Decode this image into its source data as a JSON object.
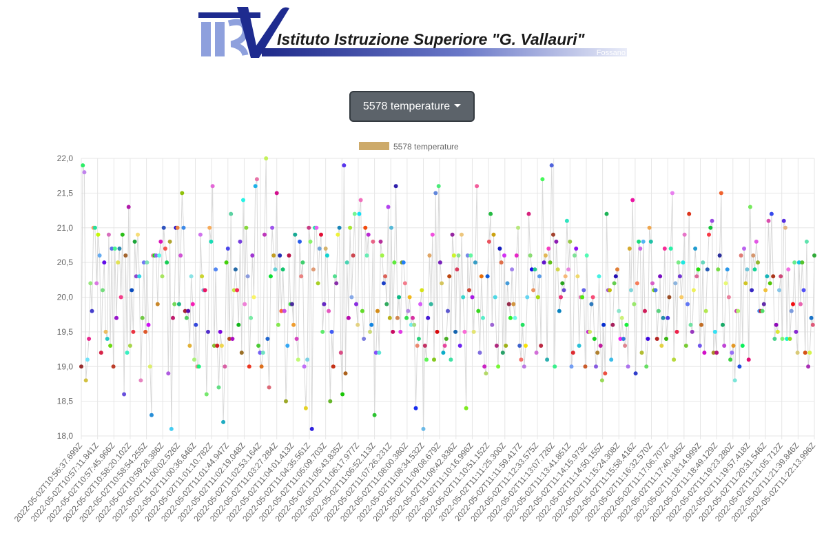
{
  "header": {
    "logo_monogram": "IIS",
    "logo_title": "Istituto Istruzione Superiore \"G. Vallauri\"",
    "logo_subtitle": "Fossano"
  },
  "dropdown": {
    "label": "5578 temperature"
  },
  "colors": {
    "button_bg": "#5c636a",
    "series_swatch": "#cdaa6a",
    "line": "#d9d9d9",
    "logo_blue": "#1e2b8f"
  },
  "chart_data": {
    "type": "line",
    "title": "",
    "xlabel": "",
    "ylabel": "",
    "ylim": [
      18.0,
      22.0
    ],
    "y_ticks": [
      "18,0",
      "18,5",
      "19,0",
      "19,5",
      "20,0",
      "20,5",
      "21,0",
      "21,5",
      "22,0"
    ],
    "grid": true,
    "legend_position": "top-center",
    "x_tick_labels": [
      "2022-05-02T10:56:37.699Z",
      "2022-05-02T10:57:11.841Z",
      "2022-05-02T10:57:45.966Z",
      "2022-05-02T10:58:20.102Z",
      "2022-05-02T10:58:54.255Z",
      "2022-05-02T10:59:28.386Z",
      "2022-05-02T11:00:02.526Z",
      "2022-05-02T11:00:36.646Z",
      "2022-05-02T11:01:10.782Z",
      "2022-05-02T11:01:44.947Z",
      "2022-05-02T11:02:19.048Z",
      "2022-05-02T11:02:53.164Z",
      "2022-05-02T11:03:27.284Z",
      "2022-05-02T11:04:01.413Z",
      "2022-05-02T11:04:35.561Z",
      "2022-05-02T11:05:09.703Z",
      "2022-05-02T11:05:43.835Z",
      "2022-05-02T11:06:17.977Z",
      "2022-05-02T11:06:52.113Z",
      "2022-05-02T11:07:26.231Z",
      "2022-05-02T11:08:00.380Z",
      "2022-05-02T11:08:34.532Z",
      "2022-05-02T11:09:08.679Z",
      "2022-05-02T11:09:42.836Z",
      "2022-05-02T11:10:16.996Z",
      "2022-05-02T11:10:51.152Z",
      "2022-05-02T11:11:25.300Z",
      "2022-05-02T11:11:59.417Z",
      "2022-05-02T11:12:33.575Z",
      "2022-05-02T11:13:07.726Z",
      "2022-05-02T11:13:41.851Z",
      "2022-05-02T11:14:15.973Z",
      "2022-05-02T11:14:50.155Z",
      "2022-05-02T11:15:24.308Z",
      "2022-05-02T11:15:58.416Z",
      "2022-05-02T11:16:32.570Z",
      "2022-05-02T11:17:06.707Z",
      "2022-05-02T11:17:40.845Z",
      "2022-05-02T11:18:14.999Z",
      "2022-05-02T11:18:49.129Z",
      "2022-05-02T11:19:23.280Z",
      "2022-05-02T11:19:57.418Z",
      "2022-05-02T11:20:31.546Z",
      "2022-05-02T11:21:05.712Z",
      "2022-05-02T11:21:39.846Z",
      "2022-05-02T11:22:13.996Z"
    ],
    "series": [
      {
        "name": "5578 temperature",
        "values": [
          19.0,
          21.9,
          21.8,
          18.8,
          19.1,
          19.4,
          20.2,
          19.8,
          21.0,
          21.0,
          20.2,
          20.9,
          20.6,
          19.2,
          20.1,
          20.5,
          19.5,
          19.4,
          20.9,
          19.3,
          20.7,
          19.0,
          20.7,
          19.7,
          20.5,
          20.7,
          20.0,
          20.9,
          18.6,
          20.6,
          19.2,
          21.3,
          19.3,
          20.1,
          19.5,
          20.8,
          20.3,
          20.9,
          20.3,
          18.8,
          19.7,
          20.5,
          19.5,
          20.5,
          19.6,
          19.0,
          18.3,
          20.6,
          20.6,
          20.6,
          19.9,
          20.6,
          20.8,
          20.3,
          21.0,
          20.7,
          20.5,
          18.9,
          20.8,
          18.1,
          19.7,
          19.9,
          21.0,
          21.0,
          19.9,
          20.6,
          21.5,
          21.0,
          19.8,
          19.7,
          19.8,
          19.3,
          20.3,
          19.9,
          19.1,
          19.6,
          19.0,
          19.0,
          20.9,
          20.3,
          20.1,
          20.1,
          18.6,
          19.5,
          21.0,
          20.8,
          21.6,
          19.3,
          20.4,
          19.3,
          18.7,
          19.5,
          19.3,
          18.2,
          19.0,
          20.5,
          20.7,
          19.4,
          21.2,
          19.4,
          20.1,
          20.4,
          20.1,
          19.6,
          20.8,
          19.2,
          21.4,
          19.9,
          21.0,
          20.3,
          19.0,
          19.7,
          20.6,
          20.0,
          21.6,
          21.7,
          19.3,
          19.2,
          19.0,
          19.2,
          20.9,
          22.0,
          19.4,
          18.7,
          20.3,
          21.0,
          20.6,
          20.4,
          21.5,
          19.6,
          20.6,
          19.8,
          20.4,
          19.8,
          18.5,
          19.3,
          20.6,
          19.9,
          19.9,
          19.6,
          20.9,
          19.4,
          19.1,
          20.8,
          20.3,
          20.5,
          19.0,
          18.4,
          19.1,
          21.0,
          20.8,
          18.1,
          20.4,
          21.0,
          21.0,
          20.2,
          20.7,
          20.9,
          19.5,
          19.9,
          20.7,
          20.6,
          19.8,
          18.5,
          19.5,
          19.0,
          20.3,
          20.2,
          20.9,
          21.0,
          19.2,
          18.6,
          21.9,
          18.9,
          20.5,
          19.7,
          21.0,
          20.0,
          20.6,
          21.2,
          19.9,
          19.6,
          21.2,
          21.4,
          19.8,
          19.4,
          21.0,
          20.6,
          20.9,
          19.5,
          19.6,
          20.8,
          18.3,
          19.2,
          19.8,
          19.2,
          20.8,
          20.6,
          20.2,
          20.3,
          19.9,
          21.3,
          19.7,
          21.0,
          19.5,
          20.5,
          21.6,
          19.7,
          20.0,
          19.5,
          20.5,
          20.5,
          20.2,
          19.7,
          19.8,
          20.0,
          19.6,
          19.7,
          19.6,
          18.4,
          19.3,
          19.4,
          19.9,
          20.1,
          18.1,
          19.3,
          19.1,
          19.7,
          20.6,
          19.9,
          20.9,
          19.1,
          21.5,
          19.5,
          21.6,
          20.5,
          20.2,
          19.2,
          19.3,
          19.4,
          19.8,
          20.3,
          19.1,
          20.9,
          20.6,
          19.5,
          20.4,
          20.6,
          19.3,
          20.9,
          20.0,
          19.5,
          18.4,
          20.6,
          20.1,
          20.6,
          20.0,
          19.5,
          20.5,
          21.6,
          19.8,
          19.2,
          20.3,
          19.7,
          19.0,
          18.9,
          20.3,
          20.8,
          21.2,
          19.6,
          20.9,
          20.0,
          19.3,
          19.0,
          20.7,
          20.5,
          19.2,
          20.6,
          19.3,
          20.2,
          19.9,
          19.7,
          20.4,
          19.9,
          19.7,
          20.6,
          21.0,
          19.3,
          19.1,
          19.6,
          19.0,
          19.3,
          20.0,
          21.2,
          20.6,
          20.4,
          20.1,
          20.4,
          19.2,
          20.0,
          20.3,
          19.3,
          21.7,
          20.5,
          20.6,
          19.1,
          20.7,
          20.5,
          21.9,
          20.9,
          19.0,
          20.8,
          20.4,
          19.8,
          20.0,
          20.2,
          20.1,
          20.3,
          21.1,
          20.4,
          20.8,
          19.0,
          19.2,
          20.6,
          20.7,
          20.3,
          19.3,
          20.0,
          20.0,
          20.1,
          19.0,
          20.6,
          19.5,
          19.5,
          19.9,
          20.0,
          19.4,
          19.0,
          19.2,
          20.3,
          19.3,
          18.8,
          19.6,
          18.9,
          21.2,
          20.1,
          20.1,
          19.1,
          19.6,
          20.2,
          20.3,
          20.4,
          19.8,
          19.4,
          19.7,
          19.4,
          19.3,
          19.6,
          19.0,
          20.7,
          20.1,
          21.4,
          19.9,
          18.9,
          20.2,
          20.8,
          20.7,
          19.2,
          20.8,
          19.8,
          19.0,
          19.4,
          21.0,
          20.8,
          20.2,
          20.1,
          20.1,
          19.4,
          19.8,
          20.3,
          19.3,
          19.7,
          20.7,
          19.4,
          19.7,
          20.0,
          20.7,
          21.5,
          19.1,
          20.2,
          19.5,
          20.5,
          20.3,
          20.0,
          20.5,
          20.9,
          19.3,
          19.9,
          21.2,
          19.6,
          19.5,
          20.1,
          20.7,
          20.3,
          20.4,
          19.3,
          19.6,
          20.5,
          19.2,
          19.8,
          20.4,
          20.9,
          21.0,
          21.1,
          19.2,
          19.5,
          19.2,
          20.4,
          20.6,
          21.5,
          19.6,
          19.3,
          20.2,
          20.4,
          20.0,
          19.1,
          19.2,
          19.3,
          18.8,
          19.8,
          19.8,
          19.0,
          20.6,
          19.3,
          20.7,
          20.2,
          20.4,
          19.1,
          21.3,
          20.1,
          20.6,
          20.4,
          20.8,
          20.5,
          19.8,
          19.8,
          19.8,
          19.9,
          20.1,
          20.3,
          21.1,
          20.2,
          21.2,
          20.3,
          19.4,
          19.6,
          19.5,
          20.1,
          20.3,
          19.4,
          21.1,
          21.0,
          19.4,
          20.4,
          19.4,
          19.8,
          19.9,
          20.5,
          19.5,
          19.2,
          20.5,
          19.9,
          20.5,
          20.1,
          19.2,
          20.8,
          19.0,
          19.2,
          19.7,
          19.6,
          20.6
        ]
      }
    ]
  }
}
